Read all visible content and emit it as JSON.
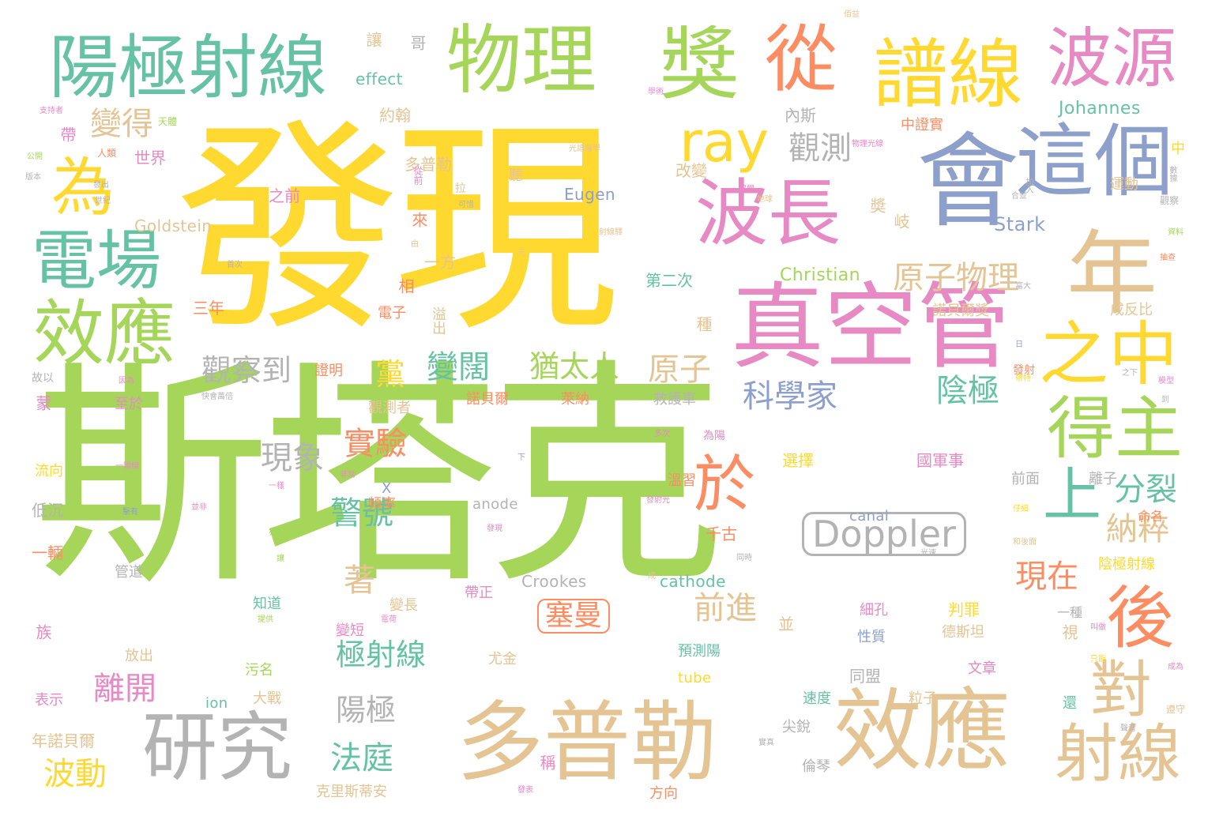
{
  "palette": {
    "green": "#a5d65a",
    "yellow": "#ffd92f",
    "teal": "#66c2a5",
    "orange": "#fc8d62",
    "blue": "#8da0cb",
    "pink": "#e78ac3",
    "tan": "#e5c494",
    "gray": "#b3b3b3"
  },
  "words": [
    {
      "text": "斯塔克",
      "weight": 100
    },
    {
      "text": "發現",
      "weight": 80
    },
    {
      "text": "會",
      "weight": 45
    },
    {
      "text": "真空管",
      "weight": 45
    },
    {
      "text": "多普勒",
      "weight": 40
    },
    {
      "text": "效應",
      "weight": 40
    },
    {
      "text": "研究",
      "weight": 35
    },
    {
      "text": "物理",
      "weight": 35
    },
    {
      "text": "獎",
      "weight": 35
    },
    {
      "text": "年",
      "weight": 35
    },
    {
      "text": "陽極射線",
      "weight": 30
    },
    {
      "text": "從",
      "weight": 30
    },
    {
      "text": "譜線",
      "weight": 30
    },
    {
      "text": "波源",
      "weight": 30
    },
    {
      "text": "這個",
      "weight": 30
    },
    {
      "text": "波長",
      "weight": 30
    },
    {
      "text": "之中",
      "weight": 28
    },
    {
      "text": "得主",
      "weight": 28
    },
    {
      "text": "對",
      "weight": 26
    },
    {
      "text": "後",
      "weight": 26
    },
    {
      "text": "射線",
      "weight": 26
    },
    {
      "text": "上",
      "weight": 26
    },
    {
      "text": "於",
      "weight": 24
    },
    {
      "text": "效應",
      "weight": 28
    },
    {
      "text": "電場",
      "weight": 25
    },
    {
      "text": "為",
      "weight": 25
    },
    {
      "text": "ray",
      "weight": 22
    },
    {
      "text": "Doppler",
      "weight": 18
    },
    {
      "text": "觀測",
      "weight": 15
    },
    {
      "text": "科學家",
      "weight": 14
    },
    {
      "text": "原子物理",
      "weight": 14
    },
    {
      "text": "變得",
      "weight": 14
    },
    {
      "text": "觀察到",
      "weight": 13
    },
    {
      "text": "變闊",
      "weight": 13
    },
    {
      "text": "猶太人",
      "weight": 13
    },
    {
      "text": "黨",
      "weight": 13
    },
    {
      "text": "陰極",
      "weight": 13
    },
    {
      "text": "原子",
      "weight": 13
    },
    {
      "text": "實驗",
      "weight": 13
    },
    {
      "text": "現象",
      "weight": 13
    },
    {
      "text": "警號",
      "weight": 13
    },
    {
      "text": "納粹",
      "weight": 13
    },
    {
      "text": "分裂",
      "weight": 13
    },
    {
      "text": "現在",
      "weight": 13
    },
    {
      "text": "離開",
      "weight": 13
    },
    {
      "text": "極射線",
      "weight": 13
    },
    {
      "text": "前進",
      "weight": 13
    },
    {
      "text": "塞曼",
      "weight": 13
    },
    {
      "text": "陽極",
      "weight": 13
    },
    {
      "text": "法庭",
      "weight": 12
    },
    {
      "text": "波動",
      "weight": 12
    },
    {
      "text": "著",
      "weight": 12
    },
    {
      "text": "Johannes",
      "weight": 6
    },
    {
      "text": "Stark",
      "weight": 6
    },
    {
      "text": "Christian",
      "weight": 6
    },
    {
      "text": "Eugen",
      "weight": 5
    },
    {
      "text": "Goldstein",
      "weight": 5
    },
    {
      "text": "effect",
      "weight": 5
    },
    {
      "text": "Crookes",
      "weight": 5
    },
    {
      "text": "cathode",
      "weight": 5
    },
    {
      "text": "anode",
      "weight": 5
    },
    {
      "text": "canal",
      "weight": 5
    },
    {
      "text": "tube",
      "weight": 5
    },
    {
      "text": "ion",
      "weight": 5
    },
    {
      "text": "X",
      "weight": 5
    },
    {
      "text": "約翰",
      "weight": 6
    },
    {
      "text": "世界",
      "weight": 6
    },
    {
      "text": "多普勒",
      "weight": 6
    },
    {
      "text": "內斯",
      "weight": 6
    },
    {
      "text": "中證實",
      "weight": 6
    },
    {
      "text": "改變",
      "weight": 6
    },
    {
      "text": "運動",
      "weight": 6
    },
    {
      "text": "第二次",
      "weight": 6
    },
    {
      "text": "一方",
      "weight": 6
    },
    {
      "text": "三年",
      "weight": 6
    },
    {
      "text": "證明",
      "weight": 6
    },
    {
      "text": "諾貝爾獎",
      "weight": 6
    },
    {
      "text": "成反比",
      "weight": 6
    },
    {
      "text": "諾貝爾",
      "weight": 6
    },
    {
      "text": "萊納",
      "weight": 6
    },
    {
      "text": "救護車",
      "weight": 6
    },
    {
      "text": "觀測者",
      "weight": 6
    },
    {
      "text": "至於",
      "weight": 6
    },
    {
      "text": "選擇",
      "weight": 6
    },
    {
      "text": "國軍事",
      "weight": 6
    },
    {
      "text": "流向",
      "weight": 6
    },
    {
      "text": "頻率",
      "weight": 6
    },
    {
      "text": "溫習",
      "weight": 6
    },
    {
      "text": "離子",
      "weight": 6
    },
    {
      "text": "前面",
      "weight": 6
    },
    {
      "text": "低沉",
      "weight": 6
    },
    {
      "text": "千古",
      "weight": 6
    },
    {
      "text": "命名",
      "weight": 6
    },
    {
      "text": "一輛",
      "weight": 6
    },
    {
      "text": "管道",
      "weight": 6
    },
    {
      "text": "知道",
      "weight": 6
    },
    {
      "text": "變長",
      "weight": 6
    },
    {
      "text": "帶正",
      "weight": 6
    },
    {
      "text": "陰極射線",
      "weight": 6
    },
    {
      "text": "判罪",
      "weight": 6
    },
    {
      "text": "細孔",
      "weight": 6
    },
    {
      "text": "德斯坦",
      "weight": 6
    },
    {
      "text": "一種",
      "weight": 6
    },
    {
      "text": "變短",
      "weight": 6
    },
    {
      "text": "並",
      "weight": 6
    },
    {
      "text": "性質",
      "weight": 6
    },
    {
      "text": "預測陽",
      "weight": 6
    },
    {
      "text": "放出",
      "weight": 6
    },
    {
      "text": "尤金",
      "weight": 6
    },
    {
      "text": "同盟",
      "weight": 6
    },
    {
      "text": "文章",
      "weight": 6
    },
    {
      "text": "污名",
      "weight": 6
    },
    {
      "text": "大戰",
      "weight": 6
    },
    {
      "text": "速度",
      "weight": 6
    },
    {
      "text": "粒子",
      "weight": 6
    },
    {
      "text": "表示",
      "weight": 6
    },
    {
      "text": "尖銳",
      "weight": 6
    },
    {
      "text": "年諾貝爾",
      "weight": 6
    },
    {
      "text": "倫琴",
      "weight": 6
    },
    {
      "text": "克里斯蒂安",
      "weight": 6
    },
    {
      "text": "方向",
      "weight": 6
    },
    {
      "text": "讓",
      "weight": 6
    },
    {
      "text": "哥",
      "weight": 6
    },
    {
      "text": "帶",
      "weight": 6
    },
    {
      "text": "天體",
      "weight": 4
    },
    {
      "text": "人類",
      "weight": 4
    },
    {
      "text": "之前",
      "weight": 6
    },
    {
      "text": "從前",
      "weight": 4
    },
    {
      "text": "拉",
      "weight": 4
    },
    {
      "text": "聽",
      "weight": 6
    },
    {
      "text": "來",
      "weight": 6
    },
    {
      "text": "奬",
      "weight": 6
    },
    {
      "text": "岐",
      "weight": 6
    },
    {
      "text": "相",
      "weight": 6
    },
    {
      "text": "電子",
      "weight": 6
    },
    {
      "text": "溢出",
      "weight": 6
    },
    {
      "text": "種",
      "weight": 6
    },
    {
      "text": "發射",
      "weight": 5
    },
    {
      "text": "中",
      "weight": 5
    },
    {
      "text": "蒙",
      "weight": 6
    },
    {
      "text": "故以",
      "weight": 5
    },
    {
      "text": "族",
      "weight": 6
    },
    {
      "text": "視",
      "weight": 6
    },
    {
      "text": "還",
      "weight": 6
    },
    {
      "text": "稱",
      "weight": 5
    },
    {
      "text": "觀察",
      "weight": 4
    },
    {
      "text": "數據",
      "weight": 4
    },
    {
      "text": "加入",
      "weight": 3
    },
    {
      "text": "地球",
      "weight": 3
    },
    {
      "text": "首次",
      "weight": 3
    },
    {
      "text": "元",
      "weight": 3
    },
    {
      "text": "資料",
      "weight": 3
    },
    {
      "text": "抽查",
      "weight": 3
    },
    {
      "text": "版本",
      "weight": 3
    },
    {
      "text": "公開",
      "weight": 3
    },
    {
      "text": "支持者",
      "weight": 3
    },
    {
      "text": "發出",
      "weight": 3
    },
    {
      "text": "世紀",
      "weight": 3
    },
    {
      "text": "可惜",
      "weight": 3
    },
    {
      "text": "射線驛",
      "weight": 3
    },
    {
      "text": "富大",
      "weight": 3
    },
    {
      "text": "日",
      "weight": 3
    },
    {
      "text": "帶特",
      "weight": 3
    },
    {
      "text": "之下",
      "weight": 3
    },
    {
      "text": "模型",
      "weight": 3
    },
    {
      "text": "因為",
      "weight": 3
    },
    {
      "text": "快會萬倍",
      "weight": 3
    },
    {
      "text": "為陽",
      "weight": 3
    },
    {
      "text": "多次",
      "weight": 3
    },
    {
      "text": "下",
      "weight": 3
    },
    {
      "text": "一陽線",
      "weight": 3
    },
    {
      "text": "非常",
      "weight": 3
    },
    {
      "text": "一樣",
      "weight": 3
    },
    {
      "text": "仔細",
      "weight": 3
    },
    {
      "text": "發射光",
      "weight": 3
    },
    {
      "text": "擊有",
      "weight": 3
    },
    {
      "text": "並非",
      "weight": 3
    },
    {
      "text": "發現",
      "weight": 3
    },
    {
      "text": "和後面",
      "weight": 3
    },
    {
      "text": "光速",
      "weight": 3
    },
    {
      "text": "亦",
      "weight": 3
    },
    {
      "text": "讓",
      "weight": 3
    },
    {
      "text": "成",
      "weight": 3
    },
    {
      "text": "同時",
      "weight": 3
    },
    {
      "text": "電荷",
      "weight": 3
    },
    {
      "text": "提供",
      "weight": 3
    },
    {
      "text": "叫做",
      "weight": 3
    },
    {
      "text": "只能",
      "weight": 3
    },
    {
      "text": "成為",
      "weight": 3
    },
    {
      "text": "遵守",
      "weight": 3
    },
    {
      "text": "聲音",
      "weight": 3
    },
    {
      "text": "實真",
      "weight": 3
    },
    {
      "text": "發表",
      "weight": 3
    },
    {
      "text": "光譜醫學",
      "weight": 3
    },
    {
      "text": "由",
      "weight": 3
    },
    {
      "text": "物理光線",
      "weight": 3
    },
    {
      "text": "佰益",
      "weight": 3
    },
    {
      "text": "合並",
      "weight": 3
    },
    {
      "text": "福爾",
      "weight": 3
    },
    {
      "text": "學術",
      "weight": 3
    },
    {
      "text": "到",
      "weight": 3
    }
  ]
}
